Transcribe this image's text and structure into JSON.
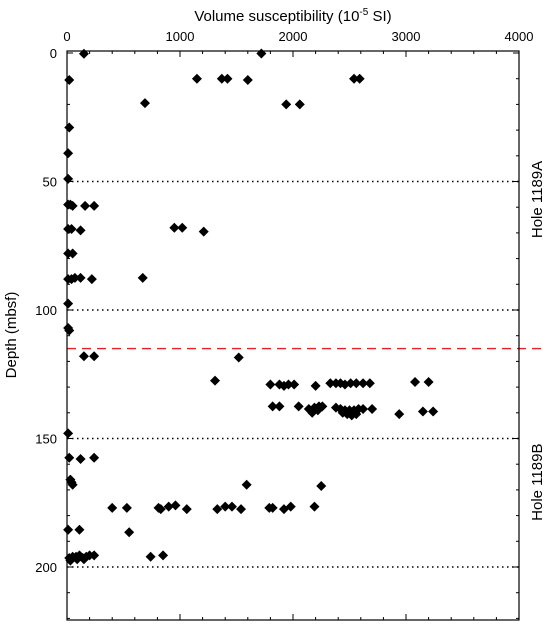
{
  "chart_data": {
    "type": "scatter",
    "title": "",
    "xlabel": "Volume susceptibility (10-5 SI)",
    "xlabel_base": "Volume susceptibility (10",
    "xlabel_exp": "-5",
    "xlabel_unit": " SI)",
    "ylabel": "Depth (mbsf)",
    "x_axis_position": "top",
    "y_inverted": true,
    "xlim": [
      0,
      4000
    ],
    "ylim": [
      0,
      225
    ],
    "xticks": [
      0,
      1000,
      2000,
      3000,
      4000
    ],
    "xtick_labels": [
      "0",
      "1000",
      "2000",
      "3000",
      "4000"
    ],
    "yticks": [
      0,
      50,
      100,
      150,
      200
    ],
    "ytick_labels": [
      "0",
      "50",
      "100",
      "150",
      "200"
    ],
    "grid": false,
    "marker": "diamond",
    "reference_lines": [
      {
        "depth": 50,
        "style": "dotted",
        "color": "#000000"
      },
      {
        "depth": 100,
        "style": "dotted",
        "color": "#000000"
      },
      {
        "depth": 150,
        "style": "dotted",
        "color": "#000000"
      },
      {
        "depth": 200,
        "style": "dotted",
        "color": "#000000"
      },
      {
        "depth": 115,
        "style": "dashed",
        "color": "#e8202a"
      }
    ],
    "section_labels": [
      {
        "text": "Hole 1189A",
        "center_depth": 57
      },
      {
        "text": "Hole 1189B",
        "center_depth": 167
      }
    ],
    "points": [
      {
        "x": 150,
        "y": 0.3
      },
      {
        "x": 1720,
        "y": 0.2
      },
      {
        "x": 20,
        "y": 10.5
      },
      {
        "x": 1150,
        "y": 10
      },
      {
        "x": 1370,
        "y": 10
      },
      {
        "x": 1420,
        "y": 10
      },
      {
        "x": 1600,
        "y": 10.5
      },
      {
        "x": 2540,
        "y": 10
      },
      {
        "x": 2590,
        "y": 10
      },
      {
        "x": 690,
        "y": 19.5
      },
      {
        "x": 1940,
        "y": 20
      },
      {
        "x": 2060,
        "y": 20
      },
      {
        "x": 20,
        "y": 29
      },
      {
        "x": 10,
        "y": 39
      },
      {
        "x": 10,
        "y": 49
      },
      {
        "x": 10,
        "y": 59
      },
      {
        "x": 30,
        "y": 59
      },
      {
        "x": 50,
        "y": 59.5
      },
      {
        "x": 160,
        "y": 59.5
      },
      {
        "x": 240,
        "y": 59.5
      },
      {
        "x": 10,
        "y": 68.5
      },
      {
        "x": 40,
        "y": 68.5
      },
      {
        "x": 120,
        "y": 69
      },
      {
        "x": 950,
        "y": 68
      },
      {
        "x": 1020,
        "y": 68
      },
      {
        "x": 1210,
        "y": 69.5
      },
      {
        "x": 10,
        "y": 78
      },
      {
        "x": 50,
        "y": 78
      },
      {
        "x": 10,
        "y": 88
      },
      {
        "x": 40,
        "y": 88
      },
      {
        "x": 70,
        "y": 87.5
      },
      {
        "x": 120,
        "y": 87.5
      },
      {
        "x": 220,
        "y": 88
      },
      {
        "x": 670,
        "y": 87.5
      },
      {
        "x": 10,
        "y": 97.5
      },
      {
        "x": 10,
        "y": 107
      },
      {
        "x": 20,
        "y": 108
      },
      {
        "x": 150,
        "y": 118
      },
      {
        "x": 240,
        "y": 118
      },
      {
        "x": 1520,
        "y": 118.5
      },
      {
        "x": 1310,
        "y": 127.5
      },
      {
        "x": 1800,
        "y": 129
      },
      {
        "x": 1880,
        "y": 129
      },
      {
        "x": 1920,
        "y": 129.5
      },
      {
        "x": 1960,
        "y": 129
      },
      {
        "x": 2010,
        "y": 129
      },
      {
        "x": 2200,
        "y": 129.5
      },
      {
        "x": 2330,
        "y": 128.5
      },
      {
        "x": 2380,
        "y": 128.5
      },
      {
        "x": 2420,
        "y": 128.5
      },
      {
        "x": 2460,
        "y": 129
      },
      {
        "x": 2510,
        "y": 128.5
      },
      {
        "x": 2560,
        "y": 128.5
      },
      {
        "x": 2620,
        "y": 128.5
      },
      {
        "x": 2680,
        "y": 128.5
      },
      {
        "x": 3080,
        "y": 128
      },
      {
        "x": 3200,
        "y": 128
      },
      {
        "x": 1820,
        "y": 137.5
      },
      {
        "x": 1880,
        "y": 137.5
      },
      {
        "x": 2050,
        "y": 137.5
      },
      {
        "x": 2140,
        "y": 138.5
      },
      {
        "x": 2190,
        "y": 138
      },
      {
        "x": 2230,
        "y": 137.5
      },
      {
        "x": 2260,
        "y": 137.5
      },
      {
        "x": 2170,
        "y": 140
      },
      {
        "x": 2220,
        "y": 139
      },
      {
        "x": 2380,
        "y": 138
      },
      {
        "x": 2420,
        "y": 138.5
      },
      {
        "x": 2460,
        "y": 139
      },
      {
        "x": 2500,
        "y": 139
      },
      {
        "x": 2540,
        "y": 139
      },
      {
        "x": 2580,
        "y": 138.5
      },
      {
        "x": 2620,
        "y": 138.5
      },
      {
        "x": 2700,
        "y": 138.5
      },
      {
        "x": 2440,
        "y": 140
      },
      {
        "x": 2480,
        "y": 140.5
      },
      {
        "x": 2520,
        "y": 141
      },
      {
        "x": 2560,
        "y": 140.5
      },
      {
        "x": 2940,
        "y": 140.5
      },
      {
        "x": 3150,
        "y": 139.5
      },
      {
        "x": 3240,
        "y": 139.5
      },
      {
        "x": 10,
        "y": 148
      },
      {
        "x": 20,
        "y": 157.5
      },
      {
        "x": 120,
        "y": 158
      },
      {
        "x": 240,
        "y": 157.5
      },
      {
        "x": 30,
        "y": 166
      },
      {
        "x": 40,
        "y": 167
      },
      {
        "x": 50,
        "y": 168
      },
      {
        "x": 1590,
        "y": 168
      },
      {
        "x": 2250,
        "y": 168.5
      },
      {
        "x": 400,
        "y": 177
      },
      {
        "x": 530,
        "y": 177
      },
      {
        "x": 810,
        "y": 177
      },
      {
        "x": 830,
        "y": 177.5
      },
      {
        "x": 900,
        "y": 176.5
      },
      {
        "x": 960,
        "y": 176
      },
      {
        "x": 1060,
        "y": 177.5
      },
      {
        "x": 1330,
        "y": 177.5
      },
      {
        "x": 1400,
        "y": 176.5
      },
      {
        "x": 1460,
        "y": 176.5
      },
      {
        "x": 1540,
        "y": 177.5
      },
      {
        "x": 1790,
        "y": 177
      },
      {
        "x": 1820,
        "y": 177
      },
      {
        "x": 1920,
        "y": 177.5
      },
      {
        "x": 1980,
        "y": 176.5
      },
      {
        "x": 2190,
        "y": 176.5
      },
      {
        "x": 10,
        "y": 185.5
      },
      {
        "x": 110,
        "y": 185.5
      },
      {
        "x": 550,
        "y": 186.5
      },
      {
        "x": 20,
        "y": 196.5
      },
      {
        "x": 50,
        "y": 196
      },
      {
        "x": 80,
        "y": 196
      },
      {
        "x": 110,
        "y": 195.5
      },
      {
        "x": 140,
        "y": 196.5
      },
      {
        "x": 170,
        "y": 196
      },
      {
        "x": 200,
        "y": 195.5
      },
      {
        "x": 240,
        "y": 195.5
      },
      {
        "x": 30,
        "y": 197.5
      },
      {
        "x": 90,
        "y": 197
      },
      {
        "x": 150,
        "y": 197
      },
      {
        "x": 740,
        "y": 196
      },
      {
        "x": 850,
        "y": 195.5
      }
    ]
  }
}
